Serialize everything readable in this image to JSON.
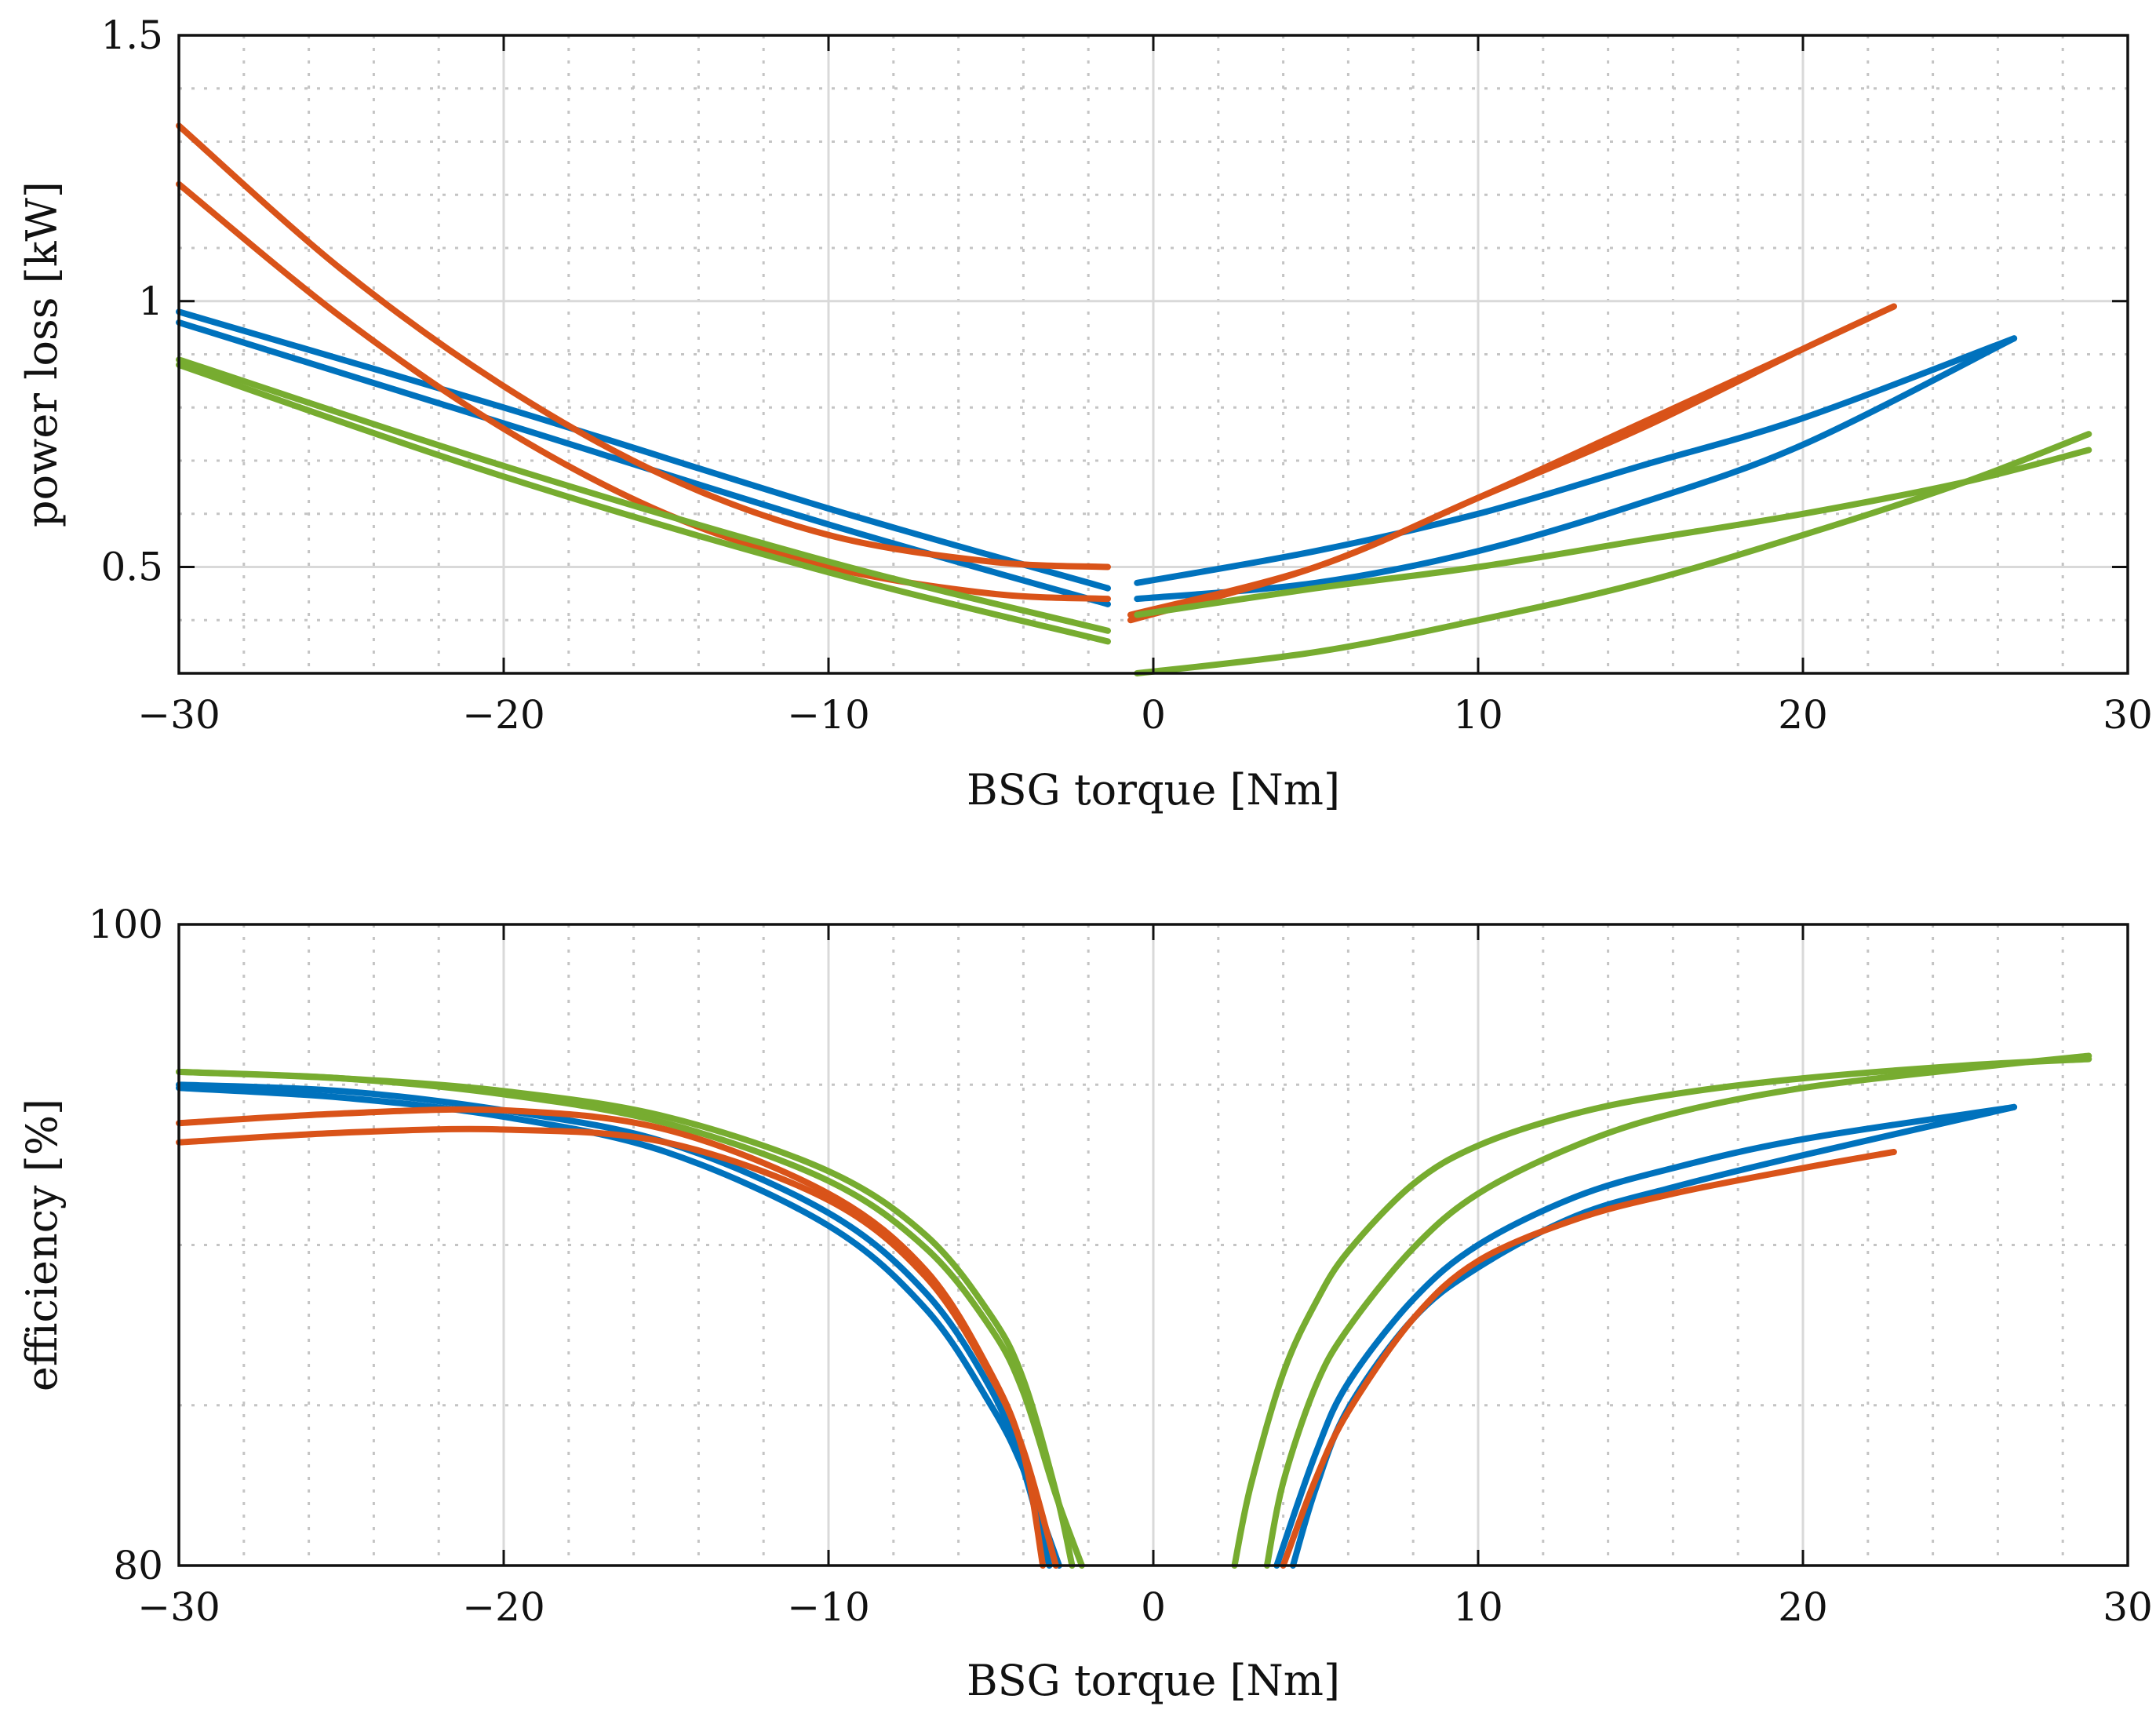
{
  "colors": {
    "blue": "#0072BD",
    "orange": "#D95319",
    "green": "#77AC30"
  },
  "chart_data": [
    {
      "type": "line",
      "xlabel": "BSG torque [Nm]",
      "ylabel": "power loss [kW]",
      "xlim": [
        -30,
        30
      ],
      "ylim": [
        0.3,
        1.5
      ],
      "xticks": [
        -30,
        -20,
        -10,
        0,
        10,
        20,
        30
      ],
      "xtick_labels": [
        "−30",
        "−20",
        "−10",
        "0",
        "10",
        "20",
        "30"
      ],
      "yticks": [
        0.5,
        1,
        1.5
      ],
      "ytick_labels": [
        "0.5",
        "1",
        "1.5"
      ],
      "grid": true,
      "series": [
        {
          "name": "blue-1-neg",
          "color": "blue",
          "x": [
            -30,
            -20,
            -10,
            -1.4
          ],
          "y": [
            0.98,
            0.8,
            0.61,
            0.46
          ]
        },
        {
          "name": "blue-2-neg",
          "color": "blue",
          "x": [
            -30,
            -20,
            -10,
            -1.4
          ],
          "y": [
            0.96,
            0.77,
            0.58,
            0.43
          ]
        },
        {
          "name": "orange-1-neg",
          "color": "orange",
          "x": [
            -30,
            -25,
            -20,
            -15,
            -10,
            -5,
            -1.4
          ],
          "y": [
            1.33,
            1.06,
            0.84,
            0.67,
            0.56,
            0.51,
            0.5
          ]
        },
        {
          "name": "orange-2-neg",
          "color": "orange",
          "x": [
            -30,
            -25,
            -20,
            -15,
            -10,
            -5,
            -1.4
          ],
          "y": [
            1.22,
            0.97,
            0.76,
            0.6,
            0.5,
            0.45,
            0.44
          ]
        },
        {
          "name": "green-1-neg",
          "color": "green",
          "x": [
            -30,
            -20,
            -10,
            -1.4
          ],
          "y": [
            0.89,
            0.69,
            0.51,
            0.38
          ]
        },
        {
          "name": "green-2-neg",
          "color": "green",
          "x": [
            -30,
            -20,
            -10,
            -1.4
          ],
          "y": [
            0.88,
            0.67,
            0.49,
            0.36
          ]
        },
        {
          "name": "blue-1-pos",
          "color": "blue",
          "x": [
            -0.5,
            5,
            10,
            15,
            20,
            26.5
          ],
          "y": [
            0.47,
            0.53,
            0.6,
            0.69,
            0.78,
            0.93
          ]
        },
        {
          "name": "blue-2-pos",
          "color": "blue",
          "x": [
            -0.5,
            5,
            10,
            15,
            20,
            26.5
          ],
          "y": [
            0.44,
            0.47,
            0.53,
            0.62,
            0.73,
            0.93
          ]
        },
        {
          "name": "orange-1-pos",
          "color": "orange",
          "x": [
            -0.7,
            5,
            10,
            15,
            20,
            22.8
          ],
          "y": [
            0.41,
            0.5,
            0.63,
            0.76,
            0.91,
            0.99
          ]
        },
        {
          "name": "orange-2-pos",
          "color": "orange",
          "x": [
            -0.7,
            5,
            10,
            15,
            20,
            22.8
          ],
          "y": [
            0.4,
            0.5,
            0.63,
            0.77,
            0.91,
            0.99
          ]
        },
        {
          "name": "green-1-pos",
          "color": "green",
          "x": [
            -0.5,
            5,
            10,
            15,
            20,
            25,
            28.8
          ],
          "y": [
            0.41,
            0.46,
            0.5,
            0.55,
            0.6,
            0.66,
            0.72
          ]
        },
        {
          "name": "green-2-pos",
          "color": "green",
          "x": [
            -0.5,
            5,
            10,
            15,
            20,
            25,
            28.8
          ],
          "y": [
            0.3,
            0.34,
            0.4,
            0.47,
            0.56,
            0.66,
            0.75
          ]
        }
      ]
    },
    {
      "type": "line",
      "xlabel": "BSG torque [Nm]",
      "ylabel": "efficiency [%]",
      "xlim": [
        -30,
        30
      ],
      "ylim": [
        80,
        100
      ],
      "xticks": [
        -30,
        -20,
        -10,
        0,
        10,
        20,
        30
      ],
      "xtick_labels": [
        "−30",
        "−20",
        "−10",
        "0",
        "10",
        "20",
        "30"
      ],
      "yticks": [
        80,
        100
      ],
      "ytick_labels": [
        "80",
        "100"
      ],
      "grid": true,
      "series": [
        {
          "name": "blue-1-neg",
          "color": "blue",
          "x": [
            -30,
            -25,
            -20,
            -15,
            -10,
            -7,
            -5,
            -4,
            -3.2
          ],
          "y": [
            95.0,
            94.8,
            94.2,
            93.2,
            91.0,
            88.5,
            85.5,
            83.0,
            80.0
          ]
        },
        {
          "name": "blue-2-neg",
          "color": "blue",
          "x": [
            -30,
            -25,
            -20,
            -15,
            -10,
            -7,
            -5,
            -4,
            -2.9
          ],
          "y": [
            94.9,
            94.6,
            94.0,
            92.9,
            90.6,
            88.0,
            85.0,
            83.0,
            80.0
          ]
        },
        {
          "name": "orange-1-neg",
          "color": "orange",
          "x": [
            -30,
            -25,
            -20,
            -15,
            -10,
            -7,
            -5,
            -4,
            -3.4
          ],
          "y": [
            93.8,
            94.1,
            94.2,
            93.6,
            91.6,
            89.2,
            86.0,
            83.5,
            80.0
          ]
        },
        {
          "name": "orange-2-neg",
          "color": "orange",
          "x": [
            -30,
            -25,
            -20,
            -15,
            -10,
            -7,
            -5,
            -4,
            -3.0
          ],
          "y": [
            93.2,
            93.5,
            93.6,
            93.2,
            91.4,
            89.0,
            85.9,
            83.6,
            80.0
          ]
        },
        {
          "name": "green-1-neg",
          "color": "green",
          "x": [
            -30,
            -25,
            -20,
            -15,
            -10,
            -7,
            -5,
            -4,
            -3,
            -2.5
          ],
          "y": [
            95.4,
            95.2,
            94.8,
            94.0,
            92.3,
            90.3,
            87.8,
            85.8,
            82.3,
            80.0
          ]
        },
        {
          "name": "green-2-neg",
          "color": "green",
          "x": [
            -30,
            -25,
            -20,
            -15,
            -10,
            -7,
            -5,
            -4,
            -3,
            -2.2
          ],
          "y": [
            95.4,
            95.2,
            94.7,
            93.8,
            92.0,
            89.9,
            87.4,
            85.4,
            82.2,
            80.0
          ]
        },
        {
          "name": "blue-1-pos",
          "color": "blue",
          "x": [
            4.3,
            5,
            6,
            8,
            10,
            13,
            16,
            20,
            26.5
          ],
          "y": [
            80.0,
            82.4,
            84.9,
            87.7,
            89.3,
            90.9,
            91.8,
            92.8,
            94.3
          ]
        },
        {
          "name": "blue-2-pos",
          "color": "blue",
          "x": [
            3.8,
            5,
            6,
            8,
            10,
            13,
            16,
            20,
            26.5
          ],
          "y": [
            80.0,
            83.5,
            85.7,
            88.3,
            90.0,
            91.5,
            92.4,
            93.3,
            94.3
          ]
        },
        {
          "name": "orange-1-pos",
          "color": "orange",
          "x": [
            4.0,
            5,
            6,
            8,
            10,
            13,
            16,
            20,
            22.8
          ],
          "y": [
            80.0,
            82.7,
            84.8,
            87.7,
            89.5,
            90.8,
            91.6,
            92.4,
            92.9
          ]
        },
        {
          "name": "green-1-pos",
          "color": "green",
          "x": [
            2.5,
            3,
            4,
            5,
            6,
            8,
            10,
            13,
            16,
            20,
            25,
            28.8
          ],
          "y": [
            80.0,
            82.5,
            86.0,
            88.2,
            89.8,
            91.9,
            93.1,
            94.1,
            94.7,
            95.2,
            95.6,
            95.8
          ]
        },
        {
          "name": "green-2-pos",
          "color": "green",
          "x": [
            3.5,
            4,
            5,
            6,
            8,
            10,
            13,
            16,
            20,
            25,
            28.8
          ],
          "y": [
            80.0,
            82.6,
            85.6,
            87.4,
            89.9,
            91.6,
            93.1,
            94.1,
            94.9,
            95.5,
            95.9
          ]
        }
      ]
    }
  ]
}
